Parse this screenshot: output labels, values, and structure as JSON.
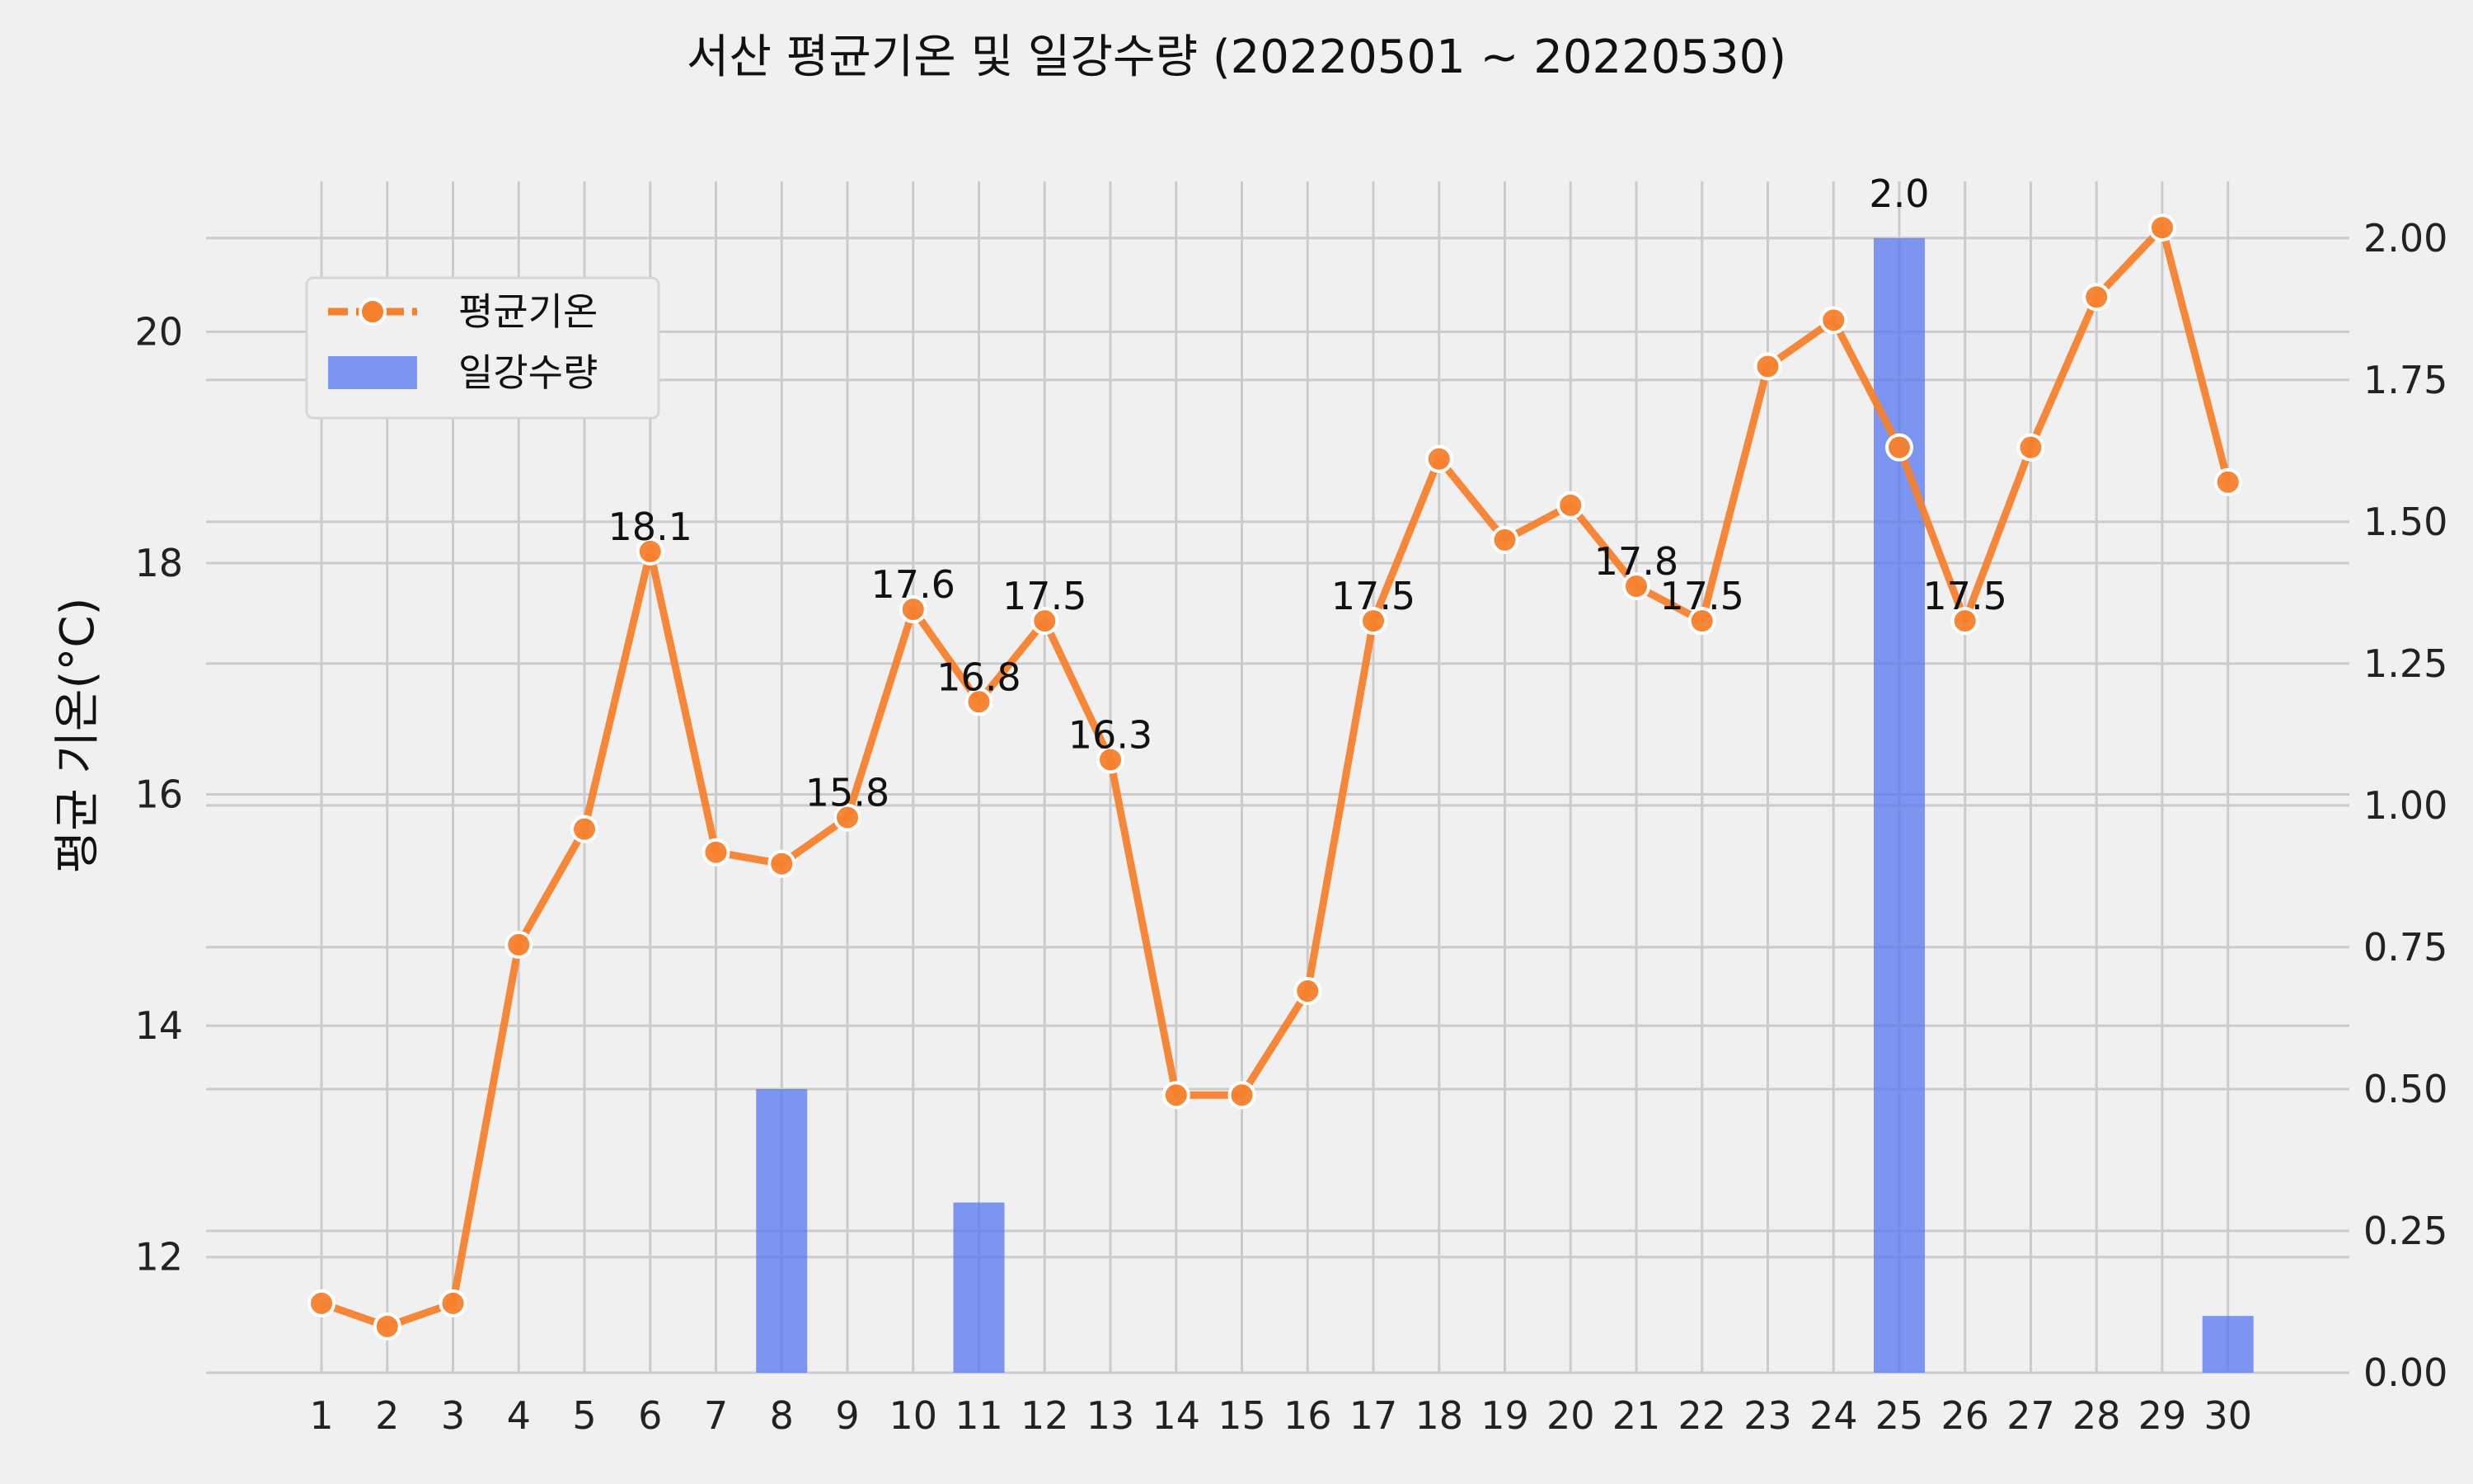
{
  "chart_data": {
    "type": "bar+line",
    "title": "서산 평균기온 및 일강수량 (20220501 ~ 20220530)",
    "ylabel_left": "평균 기온(°C)",
    "ylabel_right": "",
    "xlabel": "",
    "categories": [
      "1",
      "2",
      "3",
      "4",
      "5",
      "6",
      "7",
      "8",
      "9",
      "10",
      "11",
      "12",
      "13",
      "14",
      "15",
      "16",
      "17",
      "18",
      "19",
      "20",
      "21",
      "22",
      "23",
      "24",
      "25",
      "26",
      "27",
      "28",
      "29",
      "30"
    ],
    "series": [
      {
        "name": "평균기온",
        "type": "line",
        "axis": "left",
        "color": "#f5812d",
        "values": [
          11.6,
          11.4,
          11.6,
          14.7,
          15.7,
          18.1,
          15.5,
          15.4,
          15.8,
          17.6,
          16.8,
          17.5,
          16.3,
          13.4,
          13.4,
          14.3,
          17.5,
          18.9,
          18.2,
          18.5,
          17.8,
          17.5,
          19.7,
          20.1,
          19.0,
          17.5,
          19.0,
          20.3,
          20.9,
          18.7
        ]
      },
      {
        "name": "일강수량",
        "type": "bar",
        "axis": "right",
        "color": "#5677f0",
        "values": [
          null,
          null,
          null,
          null,
          null,
          null,
          null,
          0.5,
          null,
          null,
          0.3,
          null,
          null,
          null,
          null,
          null,
          null,
          null,
          null,
          null,
          null,
          null,
          null,
          null,
          2.0,
          null,
          null,
          null,
          null,
          0.1
        ]
      }
    ],
    "point_labels": [
      {
        "category": "6",
        "text": "18.1"
      },
      {
        "category": "9",
        "text": "15.8"
      },
      {
        "category": "10",
        "text": "17.6"
      },
      {
        "category": "11",
        "text": "16.8"
      },
      {
        "category": "12",
        "text": "17.5"
      },
      {
        "category": "13",
        "text": "16.3"
      },
      {
        "category": "17",
        "text": "17.5"
      },
      {
        "category": "21",
        "text": "17.8"
      },
      {
        "category": "22",
        "text": "17.5"
      },
      {
        "category": "26",
        "text": "17.5"
      }
    ],
    "bar_labels": [
      {
        "category": "25",
        "text": "2.0"
      }
    ],
    "ylim_left": [
      11.0,
      21.3
    ],
    "yticks_left": [
      "12",
      "14",
      "16",
      "18",
      "20"
    ],
    "yticks_left_values": [
      12,
      14,
      16,
      18,
      20
    ],
    "ylim_right": [
      0.0,
      2.1
    ],
    "yticks_right": [
      "0.00",
      "0.25",
      "0.50",
      "0.75",
      "1.00",
      "1.25",
      "1.50",
      "1.75",
      "2.00"
    ],
    "yticks_right_values": [
      0,
      0.25,
      0.5,
      0.75,
      1.0,
      1.25,
      1.5,
      1.75,
      2.0
    ],
    "grid": true,
    "legend_position": "upper-left"
  }
}
